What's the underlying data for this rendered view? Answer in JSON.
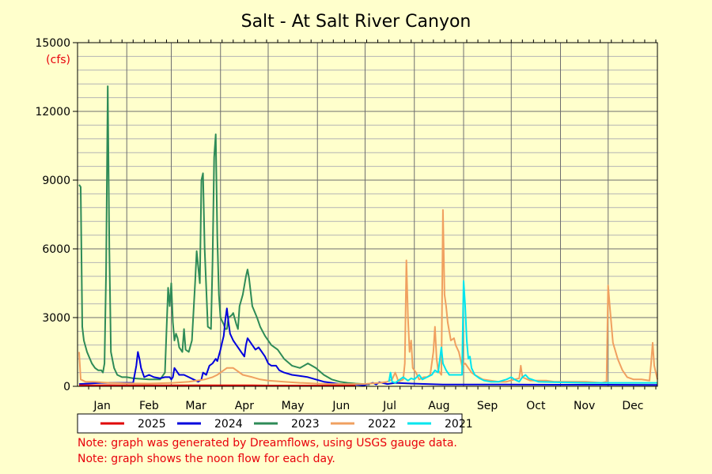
{
  "chart_data": {
    "type": "line",
    "title": "Salt - At Salt River Canyon",
    "ylabel": "(cfs)",
    "xlabel": "",
    "ylim": [
      0,
      15000
    ],
    "yticks": [
      0,
      3000,
      6000,
      9000,
      12000,
      15000
    ],
    "months": [
      "Jan",
      "Feb",
      "Mar",
      "Apr",
      "May",
      "Jun",
      "Jul",
      "Aug",
      "Sep",
      "Oct",
      "Nov",
      "Dec"
    ],
    "grid": true,
    "legend_position": "bottom",
    "x_unit": "day of year",
    "series": [
      {
        "name": "2023",
        "color": "#2e8b57",
        "points": [
          [
            1,
            8800
          ],
          [
            2,
            8700
          ],
          [
            3,
            2600
          ],
          [
            4,
            2000
          ],
          [
            6,
            1500
          ],
          [
            9,
            1000
          ],
          [
            11,
            800
          ],
          [
            13,
            700
          ],
          [
            15,
            700
          ],
          [
            16,
            600
          ],
          [
            17,
            1000
          ],
          [
            18,
            5000
          ],
          [
            19,
            13100
          ],
          [
            20,
            6000
          ],
          [
            21,
            1500
          ],
          [
            23,
            800
          ],
          [
            25,
            500
          ],
          [
            28,
            400
          ],
          [
            31,
            400
          ],
          [
            35,
            350
          ],
          [
            45,
            300
          ],
          [
            52,
            300
          ],
          [
            55,
            600
          ],
          [
            57,
            4300
          ],
          [
            58,
            3500
          ],
          [
            59,
            4500
          ],
          [
            60,
            2800
          ],
          [
            61,
            2000
          ],
          [
            62,
            2300
          ],
          [
            63,
            2100
          ],
          [
            64,
            1700
          ],
          [
            66,
            1500
          ],
          [
            67,
            2500
          ],
          [
            68,
            1600
          ],
          [
            70,
            1500
          ],
          [
            72,
            2000
          ],
          [
            74,
            4500
          ],
          [
            75,
            5900
          ],
          [
            77,
            4500
          ],
          [
            78,
            9000
          ],
          [
            79,
            9300
          ],
          [
            80,
            6000
          ],
          [
            82,
            2600
          ],
          [
            84,
            2500
          ],
          [
            85,
            5500
          ],
          [
            86,
            10000
          ],
          [
            87,
            11000
          ],
          [
            88,
            6500
          ],
          [
            89,
            4000
          ],
          [
            90,
            3000
          ],
          [
            92,
            2700
          ],
          [
            93,
            2500
          ],
          [
            94,
            2500
          ],
          [
            95,
            3000
          ],
          [
            97,
            3100
          ],
          [
            98,
            3200
          ],
          [
            100,
            2700
          ],
          [
            101,
            2500
          ],
          [
            102,
            3500
          ],
          [
            104,
            4000
          ],
          [
            106,
            4800
          ],
          [
            107,
            5100
          ],
          [
            108,
            4700
          ],
          [
            110,
            3500
          ],
          [
            113,
            3000
          ],
          [
            115,
            2600
          ],
          [
            118,
            2200
          ],
          [
            122,
            1800
          ],
          [
            126,
            1600
          ],
          [
            130,
            1200
          ],
          [
            135,
            900
          ],
          [
            140,
            800
          ],
          [
            145,
            1000
          ],
          [
            150,
            800
          ],
          [
            155,
            500
          ],
          [
            160,
            300
          ],
          [
            165,
            200
          ],
          [
            170,
            150
          ],
          [
            175,
            120
          ],
          [
            180,
            100
          ],
          [
            184,
            80
          ]
        ]
      },
      {
        "name": "2024",
        "color": "#0000dd",
        "points": [
          [
            1,
            100
          ],
          [
            15,
            150
          ],
          [
            30,
            150
          ],
          [
            35,
            150
          ],
          [
            37,
            900
          ],
          [
            38,
            1500
          ],
          [
            39,
            1200
          ],
          [
            40,
            800
          ],
          [
            42,
            400
          ],
          [
            45,
            500
          ],
          [
            48,
            400
          ],
          [
            52,
            350
          ],
          [
            55,
            400
          ],
          [
            58,
            400
          ],
          [
            59,
            300
          ],
          [
            60,
            400
          ],
          [
            61,
            800
          ],
          [
            62,
            700
          ],
          [
            64,
            500
          ],
          [
            67,
            500
          ],
          [
            70,
            400
          ],
          [
            73,
            300
          ],
          [
            76,
            200
          ],
          [
            78,
            300
          ],
          [
            79,
            600
          ],
          [
            81,
            500
          ],
          [
            83,
            900
          ],
          [
            85,
            1000
          ],
          [
            87,
            1200
          ],
          [
            88,
            1100
          ],
          [
            90,
            1600
          ],
          [
            91,
            1900
          ],
          [
            92,
            2200
          ],
          [
            93,
            2900
          ],
          [
            94,
            3400
          ],
          [
            95,
            2800
          ],
          [
            96,
            2300
          ],
          [
            98,
            2000
          ],
          [
            100,
            1800
          ],
          [
            103,
            1500
          ],
          [
            105,
            1300
          ],
          [
            106,
            1800
          ],
          [
            107,
            2100
          ],
          [
            108,
            2000
          ],
          [
            110,
            1800
          ],
          [
            112,
            1600
          ],
          [
            114,
            1700
          ],
          [
            116,
            1500
          ],
          [
            118,
            1300
          ],
          [
            120,
            1000
          ],
          [
            122,
            900
          ],
          [
            125,
            900
          ],
          [
            127,
            700
          ],
          [
            130,
            600
          ],
          [
            135,
            500
          ],
          [
            140,
            450
          ],
          [
            145,
            400
          ],
          [
            150,
            300
          ],
          [
            155,
            200
          ],
          [
            160,
            150
          ],
          [
            165,
            100
          ],
          [
            170,
            100
          ],
          [
            175,
            80
          ],
          [
            180,
            50
          ],
          [
            182,
            80
          ],
          [
            186,
            150
          ],
          [
            188,
            80
          ],
          [
            190,
            180
          ],
          [
            195,
            100
          ],
          [
            200,
            150
          ],
          [
            210,
            120
          ],
          [
            220,
            100
          ],
          [
            230,
            80
          ],
          [
            250,
            80
          ],
          [
            270,
            80
          ],
          [
            300,
            70
          ],
          [
            330,
            70
          ],
          [
            365,
            60
          ]
        ]
      },
      {
        "name": "2022",
        "color": "#f0a060",
        "points": [
          [
            1,
            1500
          ],
          [
            2,
            300
          ],
          [
            5,
            200
          ],
          [
            10,
            200
          ],
          [
            20,
            150
          ],
          [
            30,
            130
          ],
          [
            45,
            120
          ],
          [
            60,
            150
          ],
          [
            70,
            200
          ],
          [
            75,
            250
          ],
          [
            80,
            300
          ],
          [
            85,
            400
          ],
          [
            88,
            500
          ],
          [
            90,
            600
          ],
          [
            92,
            700
          ],
          [
            94,
            800
          ],
          [
            96,
            800
          ],
          [
            98,
            800
          ],
          [
            100,
            700
          ],
          [
            104,
            500
          ],
          [
            110,
            400
          ],
          [
            115,
            300
          ],
          [
            120,
            250
          ],
          [
            130,
            200
          ],
          [
            140,
            150
          ],
          [
            150,
            120
          ],
          [
            160,
            100
          ],
          [
            170,
            100
          ],
          [
            180,
            100
          ],
          [
            190,
            150
          ],
          [
            195,
            200
          ],
          [
            198,
            300
          ],
          [
            200,
            600
          ],
          [
            201,
            400
          ],
          [
            202,
            200
          ],
          [
            205,
            300
          ],
          [
            206,
            1000
          ],
          [
            207,
            5500
          ],
          [
            208,
            3000
          ],
          [
            209,
            1500
          ],
          [
            210,
            2000
          ],
          [
            211,
            800
          ],
          [
            213,
            600
          ],
          [
            215,
            300
          ],
          [
            218,
            400
          ],
          [
            220,
            400
          ],
          [
            222,
            500
          ],
          [
            223,
            1000
          ],
          [
            224,
            1500
          ],
          [
            225,
            2600
          ],
          [
            226,
            1200
          ],
          [
            227,
            700
          ],
          [
            229,
            500
          ],
          [
            230,
            7700
          ],
          [
            231,
            4000
          ],
          [
            232,
            3500
          ],
          [
            233,
            2800
          ],
          [
            235,
            2000
          ],
          [
            237,
            2100
          ],
          [
            238,
            1800
          ],
          [
            240,
            1500
          ],
          [
            242,
            900
          ],
          [
            244,
            1000
          ],
          [
            246,
            800
          ],
          [
            248,
            600
          ],
          [
            250,
            500
          ],
          [
            255,
            300
          ],
          [
            260,
            250
          ],
          [
            265,
            200
          ],
          [
            270,
            200
          ],
          [
            275,
            300
          ],
          [
            278,
            350
          ],
          [
            279,
            900
          ],
          [
            280,
            400
          ],
          [
            285,
            250
          ],
          [
            290,
            250
          ],
          [
            295,
            250
          ],
          [
            300,
            200
          ],
          [
            310,
            200
          ],
          [
            320,
            200
          ],
          [
            330,
            150
          ],
          [
            333,
            200
          ],
          [
            334,
            4400
          ],
          [
            335,
            3500
          ],
          [
            337,
            1900
          ],
          [
            340,
            1200
          ],
          [
            343,
            700
          ],
          [
            346,
            400
          ],
          [
            350,
            300
          ],
          [
            355,
            300
          ],
          [
            360,
            250
          ],
          [
            361,
            1000
          ],
          [
            362,
            1900
          ],
          [
            363,
            900
          ],
          [
            365,
            300
          ]
        ]
      },
      {
        "name": "2021",
        "color": "#00e5ee",
        "points": [
          [
            196,
            200
          ],
          [
            197,
            600
          ],
          [
            198,
            200
          ],
          [
            200,
            150
          ],
          [
            205,
            400
          ],
          [
            208,
            250
          ],
          [
            210,
            350
          ],
          [
            212,
            300
          ],
          [
            215,
            500
          ],
          [
            217,
            300
          ],
          [
            220,
            400
          ],
          [
            223,
            500
          ],
          [
            225,
            700
          ],
          [
            227,
            600
          ],
          [
            229,
            1700
          ],
          [
            230,
            1000
          ],
          [
            232,
            700
          ],
          [
            234,
            500
          ],
          [
            238,
            500
          ],
          [
            240,
            500
          ],
          [
            242,
            500
          ],
          [
            243,
            4600
          ],
          [
            244,
            3500
          ],
          [
            245,
            2000
          ],
          [
            246,
            1200
          ],
          [
            247,
            1300
          ],
          [
            248,
            800
          ],
          [
            250,
            500
          ],
          [
            253,
            350
          ],
          [
            256,
            250
          ],
          [
            260,
            200
          ],
          [
            265,
            200
          ],
          [
            270,
            300
          ],
          [
            273,
            400
          ],
          [
            275,
            300
          ],
          [
            278,
            200
          ],
          [
            280,
            400
          ],
          [
            282,
            500
          ],
          [
            284,
            350
          ],
          [
            286,
            300
          ],
          [
            290,
            200
          ],
          [
            300,
            180
          ],
          [
            320,
            150
          ],
          [
            340,
            150
          ],
          [
            365,
            150
          ]
        ]
      },
      {
        "name": "2025",
        "color": "#e00000",
        "points": [
          [
            1,
            50
          ],
          [
            10,
            40
          ],
          [
            20,
            50
          ],
          [
            30,
            40
          ],
          [
            40,
            45
          ],
          [
            50,
            40
          ],
          [
            60,
            45
          ],
          [
            70,
            40
          ],
          [
            80,
            40
          ],
          [
            90,
            40
          ],
          [
            100,
            40
          ],
          [
            110,
            40
          ],
          [
            120,
            35
          ],
          [
            130,
            35
          ],
          [
            140,
            35
          ],
          [
            150,
            35
          ],
          [
            160,
            35
          ],
          [
            170,
            30
          ],
          [
            175,
            30
          ]
        ]
      }
    ],
    "legend": [
      "2025",
      "2024",
      "2023",
      "2022",
      "2021"
    ],
    "notes": [
      "Note: graph was generated by Dreamflows, using USGS gauge data.",
      "Note: graph shows the noon flow for each day."
    ]
  }
}
